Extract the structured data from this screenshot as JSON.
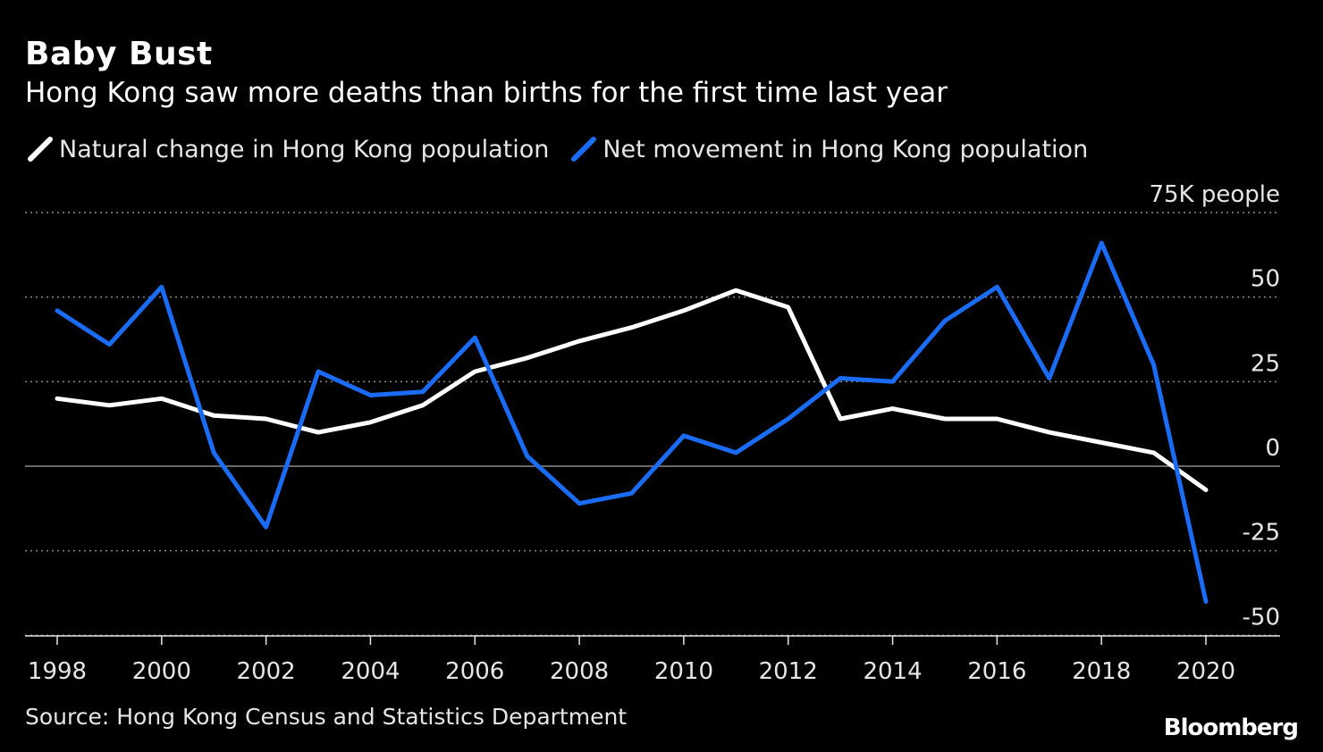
{
  "header": {
    "title": "Baby Bust",
    "subtitle": "Hong Kong saw more deaths than births for the first time last year"
  },
  "legend": [
    {
      "label": "Natural change in Hong Kong population",
      "color": "#ffffff"
    },
    {
      "label": "Net movement in Hong Kong population",
      "color": "#1a6cf5"
    }
  ],
  "footer": {
    "source": "Source: Hong Kong Census and Statistics Department",
    "brand": "Bloomberg"
  },
  "chart_data": {
    "type": "line",
    "title": "Baby Bust",
    "subtitle": "Hong Kong saw more deaths than births for the first time last year",
    "x": [
      1998,
      1999,
      2000,
      2001,
      2002,
      2003,
      2004,
      2005,
      2006,
      2007,
      2008,
      2009,
      2010,
      2011,
      2012,
      2013,
      2014,
      2015,
      2016,
      2017,
      2018,
      2019,
      2020
    ],
    "x_tick_labels": [
      "1998",
      "2000",
      "2002",
      "2004",
      "2006",
      "2008",
      "2010",
      "2012",
      "2014",
      "2016",
      "2018",
      "2020"
    ],
    "y_tick_labels": [
      "75K people",
      "50",
      "25",
      "0",
      "-25",
      "-50"
    ],
    "y_tick_values": [
      75,
      50,
      25,
      0,
      -25,
      -50
    ],
    "ylim": [
      -50,
      75
    ],
    "grid": true,
    "legend_position": "top-left",
    "series": [
      {
        "name": "Natural change in Hong Kong population",
        "color": "#ffffff",
        "values": [
          20,
          18,
          20,
          15,
          14,
          10,
          13,
          18,
          28,
          32,
          37,
          41,
          46,
          52,
          47,
          14,
          17,
          14,
          14,
          10,
          7,
          4,
          -7
        ]
      },
      {
        "name": "Net movement in Hong Kong population",
        "color": "#1a6cf5",
        "values": [
          46,
          36,
          53,
          4,
          -18,
          28,
          21,
          22,
          38,
          3,
          -11,
          -8,
          9,
          4,
          14,
          26,
          25,
          43,
          53,
          26,
          66,
          30,
          -40
        ]
      }
    ]
  }
}
